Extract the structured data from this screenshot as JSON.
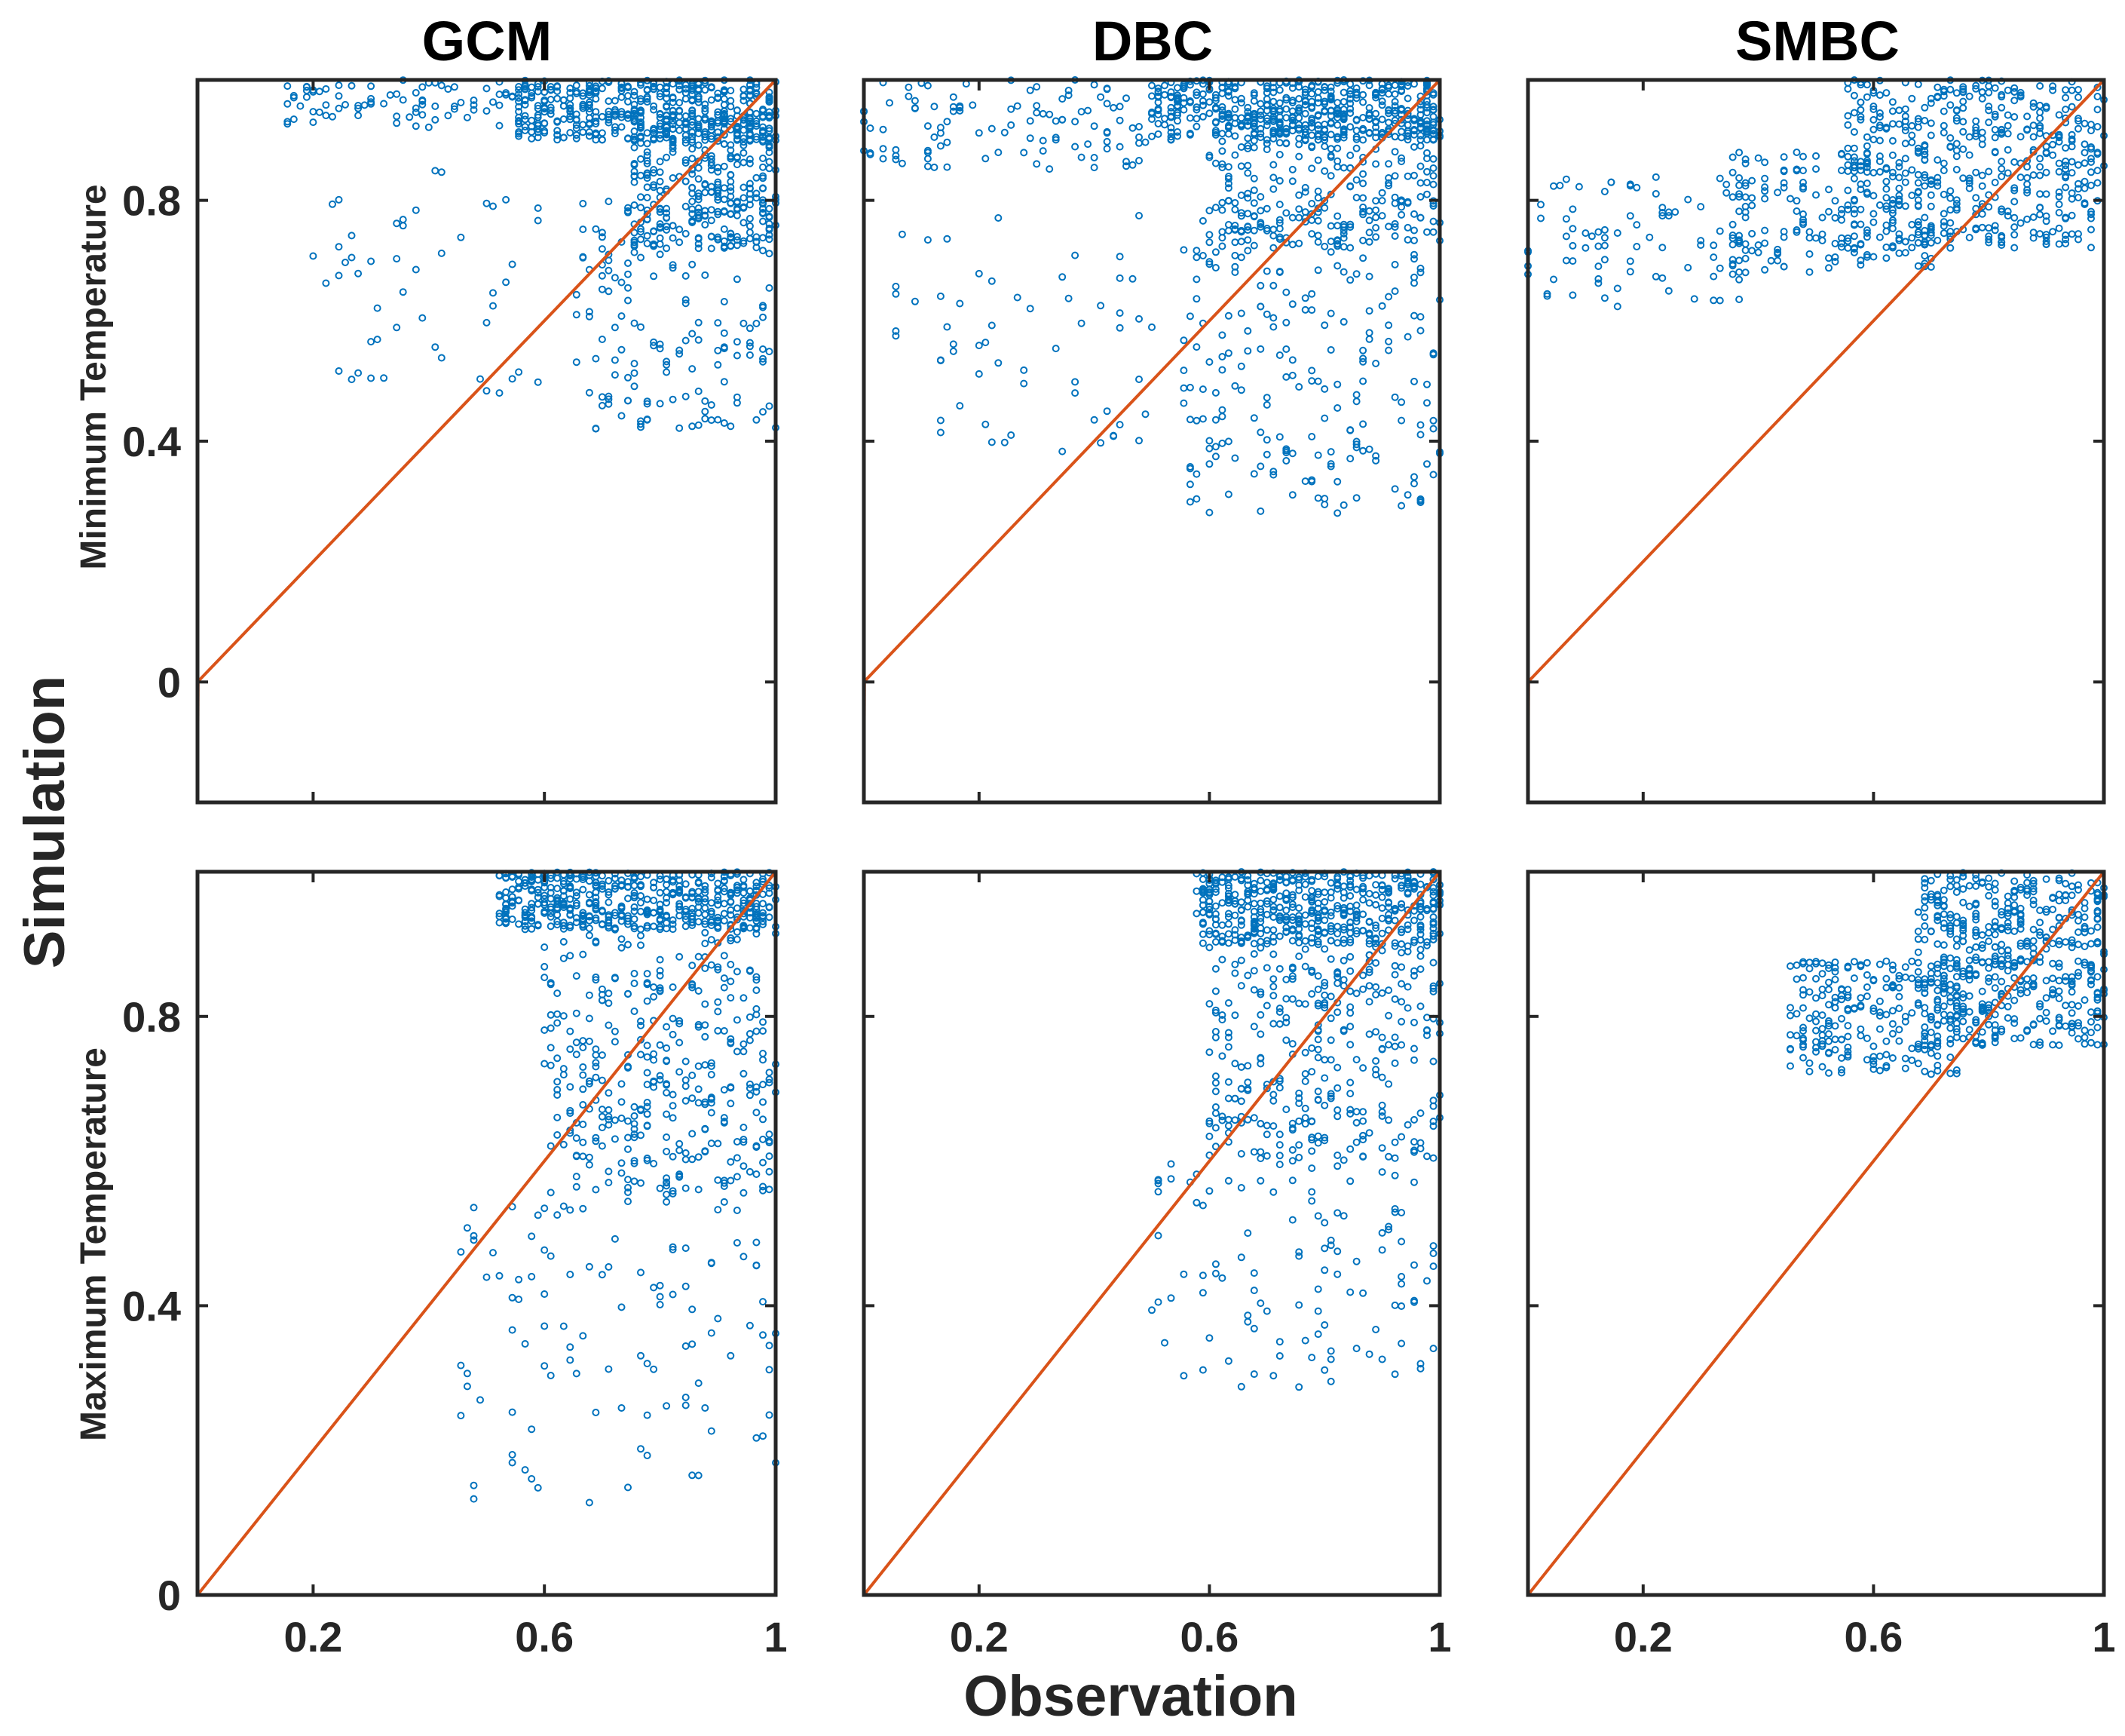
{
  "figure": {
    "xlabel": "Observation",
    "ylabel": "Simulation",
    "columns": [
      "GCM",
      "DBC",
      "SMBC"
    ],
    "rows": [
      "Minimum Temperature",
      "Maximum Temperature"
    ]
  },
  "colors": {
    "points": "#0072BD",
    "reference_line": "#D95319",
    "axes": "#262626"
  },
  "chart_data": [
    {
      "type": "scatter",
      "panel": "GCM / Minimum Temperature",
      "title": "GCM",
      "ylabel": "Minimum Temperature",
      "xlim": [
        0,
        1
      ],
      "ylim": [
        -0.2,
        1
      ],
      "xticks": [
        0.2,
        0.6,
        1
      ],
      "xtick_labels": [
        "",
        "",
        ""
      ],
      "yticks": [
        0,
        0.4,
        0.8
      ],
      "ytick_labels": [
        "0",
        "0.4",
        "0.8"
      ],
      "reference_line": "y = x",
      "clusters": [
        {
          "x": [
            0.55,
            1.0
          ],
          "y": [
            0.9,
            1.0
          ],
          "n": 420
        },
        {
          "x": [
            0.75,
            1.0
          ],
          "y": [
            0.72,
            0.95
          ],
          "n": 320
        },
        {
          "x": [
            0.65,
            1.0
          ],
          "y": [
            0.42,
            0.8
          ],
          "n": 160
        },
        {
          "x": [
            0.15,
            0.6
          ],
          "y": [
            0.92,
            1.0
          ],
          "n": 90
        },
        {
          "x": [
            0.2,
            0.6
          ],
          "y": [
            0.47,
            0.85
          ],
          "n": 50
        }
      ]
    },
    {
      "type": "scatter",
      "panel": "DBC / Minimum Temperature",
      "title": "DBC",
      "ylabel": "",
      "xlim": [
        0,
        1
      ],
      "ylim": [
        -0.2,
        1
      ],
      "xticks": [
        0.2,
        0.6,
        1
      ],
      "xtick_labels": [
        "",
        "",
        ""
      ],
      "yticks": [
        0,
        0.4,
        0.8
      ],
      "ytick_labels": [
        "",
        "",
        ""
      ],
      "reference_line": "y = x",
      "clusters": [
        {
          "x": [
            0.5,
            1.0
          ],
          "y": [
            0.9,
            1.0
          ],
          "n": 420
        },
        {
          "x": [
            0.6,
            1.0
          ],
          "y": [
            0.72,
            0.95
          ],
          "n": 300
        },
        {
          "x": [
            0.55,
            1.0
          ],
          "y": [
            0.28,
            0.78
          ],
          "n": 220
        },
        {
          "x": [
            0.0,
            0.5
          ],
          "y": [
            0.85,
            1.0
          ],
          "n": 110
        },
        {
          "x": [
            0.05,
            0.5
          ],
          "y": [
            0.38,
            0.78
          ],
          "n": 60
        }
      ]
    },
    {
      "type": "scatter",
      "panel": "SMBC / Minimum Temperature",
      "title": "SMBC",
      "ylabel": "",
      "xlim": [
        0,
        1
      ],
      "ylim": [
        -0.2,
        1
      ],
      "xticks": [
        0.2,
        0.6,
        1
      ],
      "xtick_labels": [
        "",
        "",
        ""
      ],
      "yticks": [
        0,
        0.4,
        0.8
      ],
      "ytick_labels": [
        "",
        "",
        ""
      ],
      "reference_line": "y = x",
      "clusters": [
        {
          "x": [
            0.55,
            1.0
          ],
          "y": [
            0.72,
            1.0
          ],
          "n": 480
        },
        {
          "x": [
            0.35,
            0.7
          ],
          "y": [
            0.68,
            0.88
          ],
          "n": 160
        },
        {
          "x": [
            0.0,
            0.4
          ],
          "y": [
            0.62,
            0.84
          ],
          "n": 90
        }
      ]
    },
    {
      "type": "scatter",
      "panel": "GCM / Maximum Temperature",
      "title": "",
      "ylabel": "Maximum Temperature",
      "xlim": [
        0,
        1
      ],
      "ylim": [
        0,
        1
      ],
      "xticks": [
        0.2,
        0.6,
        1
      ],
      "xtick_labels": [
        "0.2",
        "0.6",
        "1"
      ],
      "yticks": [
        0,
        0.4,
        0.8
      ],
      "ytick_labels": [
        "0",
        "0.4",
        "0.8"
      ],
      "reference_line": "y = x",
      "clusters": [
        {
          "x": [
            0.52,
            1.0
          ],
          "y": [
            0.92,
            1.0
          ],
          "n": 480
        },
        {
          "x": [
            0.6,
            1.0
          ],
          "y": [
            0.55,
            0.92
          ],
          "n": 360
        },
        {
          "x": [
            0.45,
            1.0
          ],
          "y": [
            0.12,
            0.55
          ],
          "n": 110
        }
      ]
    },
    {
      "type": "scatter",
      "panel": "DBC / Maximum Temperature",
      "title": "",
      "ylabel": "",
      "xlim": [
        0,
        1
      ],
      "ylim": [
        0,
        1
      ],
      "xticks": [
        0.2,
        0.6,
        1
      ],
      "xtick_labels": [
        "0.2",
        "0.6",
        "1"
      ],
      "yticks": [
        0,
        0.4,
        0.8
      ],
      "ytick_labels": [
        "",
        "",
        ""
      ],
      "reference_line": "y = x",
      "clusters": [
        {
          "x": [
            0.58,
            1.0
          ],
          "y": [
            0.9,
            1.0
          ],
          "n": 460
        },
        {
          "x": [
            0.6,
            1.0
          ],
          "y": [
            0.6,
            0.9
          ],
          "n": 320
        },
        {
          "x": [
            0.5,
            1.0
          ],
          "y": [
            0.28,
            0.6
          ],
          "n": 110
        }
      ]
    },
    {
      "type": "scatter",
      "panel": "SMBC / Maximum Temperature",
      "title": "",
      "ylabel": "",
      "xlim": [
        0,
        1
      ],
      "ylim": [
        0,
        1
      ],
      "xticks": [
        0.2,
        0.6,
        1
      ],
      "xtick_labels": [
        "0.2",
        "0.6",
        "1"
      ],
      "yticks": [
        0,
        0.4,
        0.8
      ],
      "ytick_labels": [
        "",
        "",
        ""
      ],
      "reference_line": "y = x",
      "clusters": [
        {
          "x": [
            0.68,
            1.0
          ],
          "y": [
            0.76,
            1.0
          ],
          "n": 500
        },
        {
          "x": [
            0.45,
            0.75
          ],
          "y": [
            0.72,
            0.88
          ],
          "n": 220
        }
      ]
    }
  ]
}
